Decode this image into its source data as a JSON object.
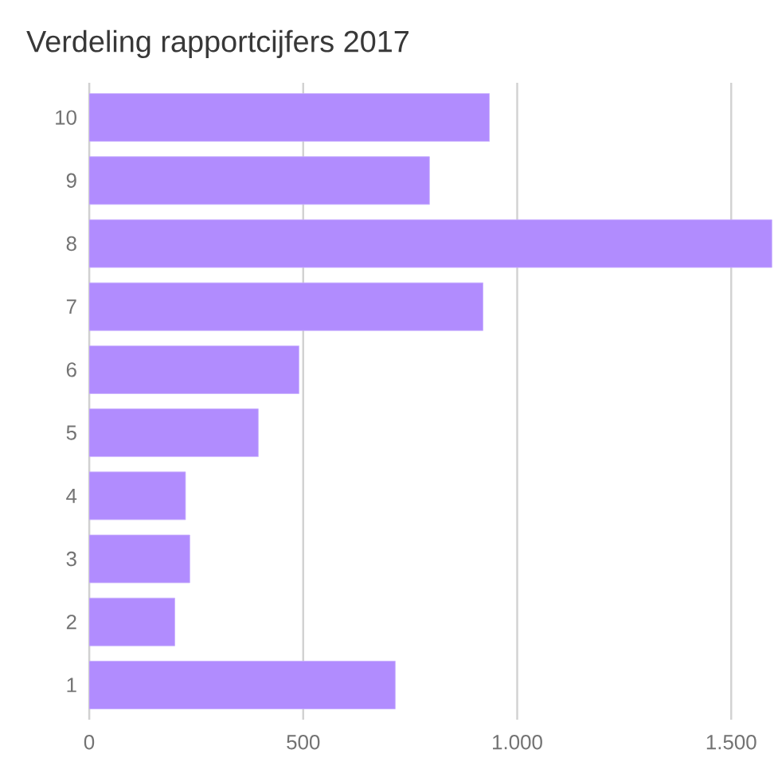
{
  "chart_data": {
    "type": "bar",
    "orientation": "horizontal",
    "title": "Verdeling rapportcijfers 2017",
    "categories": [
      "10",
      "9",
      "8",
      "7",
      "6",
      "5",
      "4",
      "3",
      "2",
      "1"
    ],
    "values": [
      935,
      795,
      1595,
      920,
      490,
      395,
      225,
      235,
      200,
      715
    ],
    "color": "#b18cfe",
    "xlim": [
      0,
      1600
    ],
    "xticks": [
      0,
      500,
      {
        "value": 1000,
        "label": "1.000"
      },
      {
        "value": 1500,
        "label": "1.500"
      }
    ],
    "grid": "x"
  }
}
